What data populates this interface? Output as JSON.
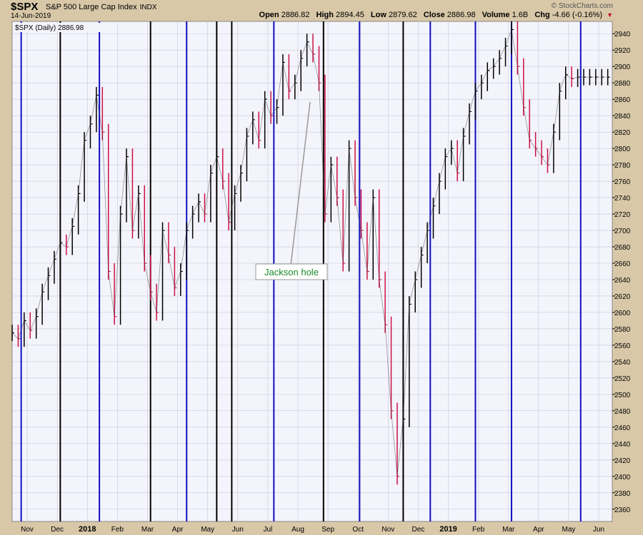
{
  "header": {
    "symbol": "$SPX",
    "name": "S&P 500 Large Cap Index",
    "exchange": "INDX",
    "date": "14-Jun-2019",
    "brand": "© StockCharts.com",
    "open_label": "Open",
    "open": "2886.82",
    "high_label": "High",
    "high": "2894.45",
    "low_label": "Low",
    "low": "2879.62",
    "close_label": "Close",
    "close": "2886.98",
    "volume_label": "Volume",
    "volume": "1.6B",
    "chg_label": "Chg",
    "chg": "-4.66 (-0.16%)"
  },
  "legend": "$SPX (Daily) 2886.98",
  "annotation": "Jackson hole",
  "colors": {
    "up": "#000000",
    "down": "#cc1144",
    "blue_line": "#1010c0",
    "black_line": "#000000",
    "plot_bg": "#f4f4fc",
    "grid": "#c8c8d8",
    "frame": "#d8c8a8"
  },
  "chart_data": {
    "type": "line",
    "title": "$SPX (Daily) 2886.98",
    "ylim": [
      2345,
      2955
    ],
    "y_ticks": [
      2360,
      2380,
      2400,
      2420,
      2440,
      2460,
      2480,
      2500,
      2520,
      2540,
      2560,
      2580,
      2600,
      2620,
      2640,
      2660,
      2680,
      2700,
      2720,
      2740,
      2760,
      2780,
      2800,
      2820,
      2840,
      2860,
      2880,
      2900,
      2920,
      2940
    ],
    "x_tick_labels": [
      "Nov",
      "Dec",
      "2018",
      "Feb",
      "Mar",
      "Apr",
      "May",
      "Jun",
      "Jul",
      "Aug",
      "Sep",
      "Oct",
      "Nov",
      "Dec",
      "2019",
      "Feb",
      "Mar",
      "Apr",
      "May",
      "Jun"
    ],
    "bold_x_labels": [
      "2018",
      "2019"
    ],
    "x_tick_positions": [
      0.5,
      1.5,
      2.5,
      3.5,
      4.5,
      5.5,
      6.5,
      7.5,
      8.5,
      9.5,
      10.5,
      11.5,
      12.5,
      13.5,
      14.5,
      15.5,
      16.5,
      17.5,
      18.5,
      19.5
    ],
    "x_range": [
      0,
      19.95
    ],
    "vertical_lines": [
      {
        "x": 0.3,
        "color": "blue"
      },
      {
        "x": 1.6,
        "color": "black"
      },
      {
        "x": 2.9,
        "color": "blue"
      },
      {
        "x": 4.6,
        "color": "black"
      },
      {
        "x": 5.8,
        "color": "blue"
      },
      {
        "x": 6.8,
        "color": "black"
      },
      {
        "x": 7.3,
        "color": "black"
      },
      {
        "x": 8.7,
        "color": "blue"
      },
      {
        "x": 10.35,
        "color": "black"
      },
      {
        "x": 11.55,
        "color": "blue"
      },
      {
        "x": 13.0,
        "color": "black"
      },
      {
        "x": 13.9,
        "color": "blue"
      },
      {
        "x": 15.4,
        "color": "blue"
      },
      {
        "x": 16.6,
        "color": "blue"
      },
      {
        "x": 18.9,
        "color": "blue"
      }
    ],
    "series": [
      {
        "x": [
          0.0,
          0.2,
          0.4,
          0.6,
          0.8,
          1.0,
          1.2,
          1.4,
          1.6,
          1.8,
          2.0,
          2.2,
          2.4,
          2.6,
          2.8,
          3.0,
          3.2,
          3.4,
          3.6,
          3.8,
          4.0,
          4.2,
          4.4,
          4.6,
          4.8,
          5.0,
          5.2,
          5.4,
          5.6,
          5.8,
          6.0,
          6.2,
          6.4,
          6.6,
          6.8,
          7.0,
          7.2,
          7.4,
          7.6,
          7.8,
          8.0,
          8.2,
          8.4,
          8.6,
          8.8,
          9.0,
          9.2,
          9.4,
          9.6,
          9.8,
          10.0,
          10.2,
          10.4,
          10.6,
          10.8,
          11.0,
          11.2,
          11.4,
          11.6,
          11.8,
          12.0,
          12.2,
          12.4,
          12.6,
          12.8,
          13.0,
          13.2,
          13.4,
          13.6,
          13.8,
          14.0,
          14.2,
          14.4,
          14.6,
          14.8,
          15.0,
          15.2,
          15.4,
          15.6,
          15.8,
          16.0,
          16.2,
          16.4,
          16.6,
          16.8,
          17.0,
          17.2,
          17.4,
          17.6,
          17.8,
          18.0,
          18.2,
          18.4,
          18.6,
          18.8,
          19.0,
          19.2,
          19.4,
          19.6,
          19.8
        ],
        "y": [
          2575,
          2568,
          2590,
          2578,
          2595,
          2625,
          2645,
          2665,
          2685,
          2680,
          2705,
          2745,
          2810,
          2830,
          2865,
          2820,
          2650,
          2595,
          2720,
          2790,
          2700,
          2745,
          2660,
          2625,
          2600,
          2700,
          2670,
          2630,
          2650,
          2700,
          2720,
          2735,
          2720,
          2770,
          2790,
          2760,
          2710,
          2745,
          2770,
          2815,
          2835,
          2810,
          2860,
          2840,
          2850,
          2905,
          2870,
          2880,
          2910,
          2930,
          2915,
          2880,
          2720,
          2780,
          2740,
          2660,
          2800,
          2740,
          2700,
          2650,
          2740,
          2640,
          2585,
          2480,
          2400,
          2470,
          2610,
          2640,
          2670,
          2700,
          2730,
          2760,
          2790,
          2800,
          2770,
          2815,
          2845,
          2870,
          2880,
          2895,
          2900,
          2910,
          2925,
          2945,
          2900,
          2850,
          2810,
          2800,
          2790,
          2780,
          2820,
          2870,
          2890,
          2885,
          2887,
          2887,
          2887,
          2887,
          2887,
          2887
        ],
        "name": "$SPX"
      }
    ]
  }
}
